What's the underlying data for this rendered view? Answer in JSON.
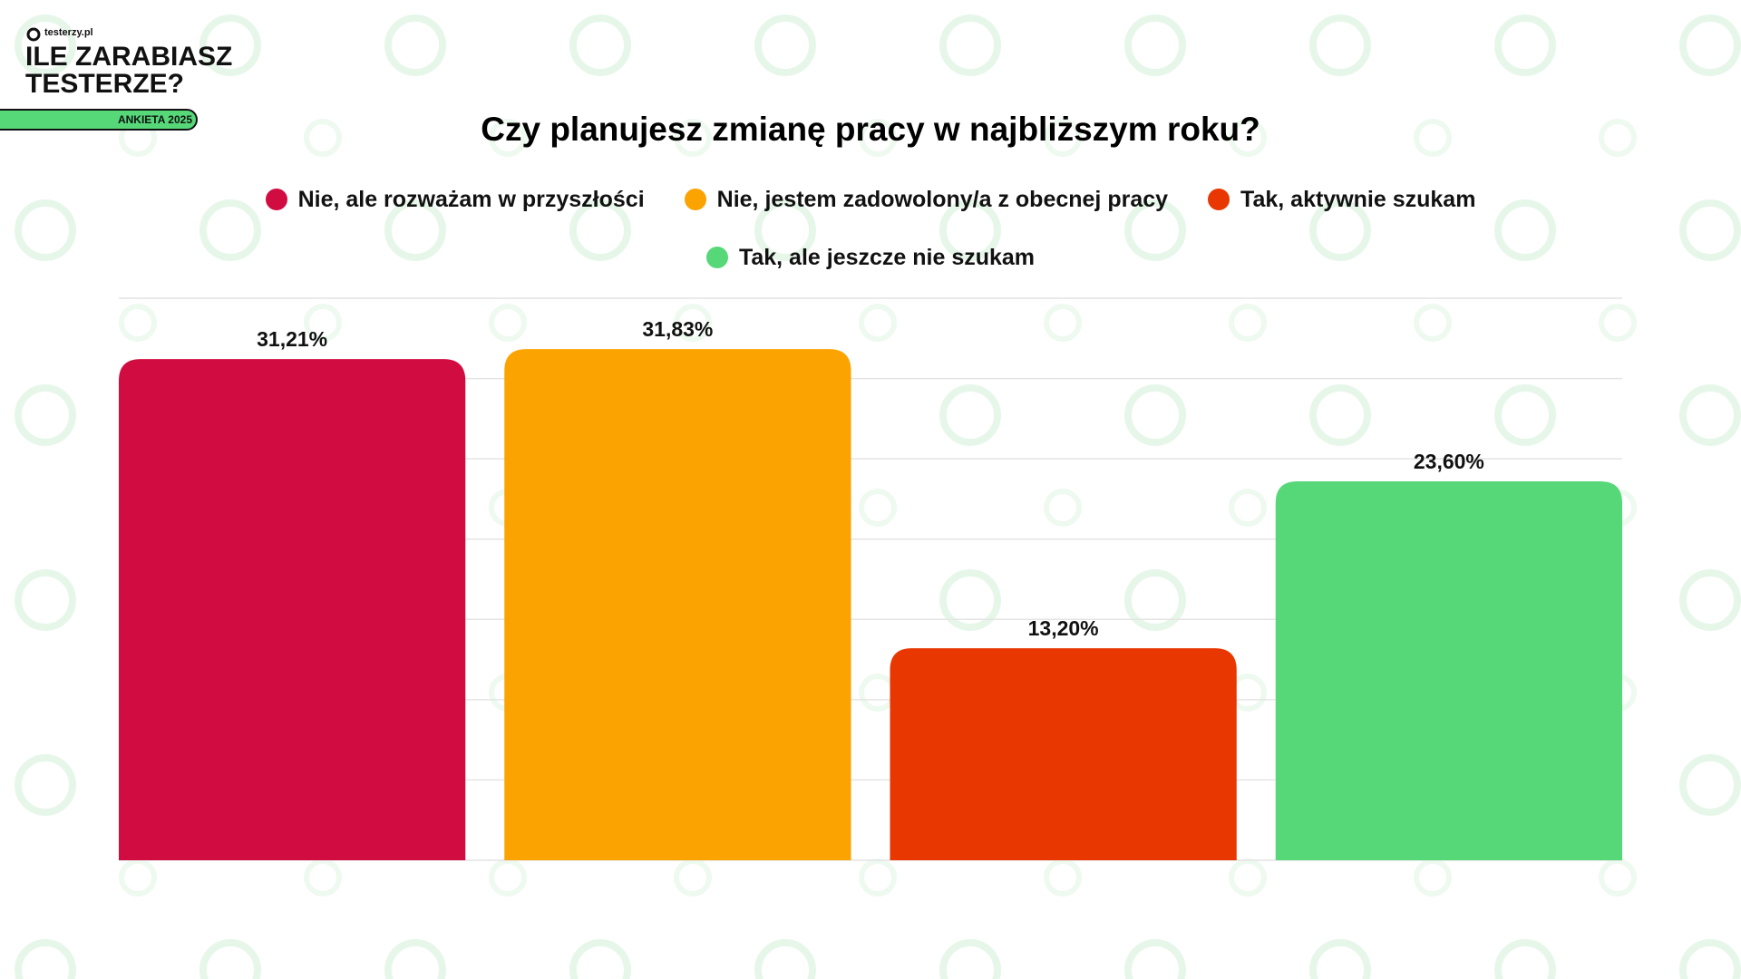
{
  "header": {
    "logo": "testerzy.pl",
    "title_line1": "ILE ZARABIASZ",
    "title_line2": "TESTERZE?",
    "badge": "ANKIETA 2025"
  },
  "chart_data": {
    "type": "bar",
    "title": "Czy planujesz zmianę pracy w najbliższym roku?",
    "series": [
      {
        "name": "Nie, ale rozważam w przyszłości",
        "color": "#d10c41",
        "values": [
          31.21
        ],
        "value_labels": [
          "31,21%"
        ]
      },
      {
        "name": "Nie, jestem zadowolony/a z obecnej pracy",
        "color": "#fba300",
        "values": [
          31.83
        ],
        "value_labels": [
          "31,83%"
        ]
      },
      {
        "name": "Tak, aktywnie szukam",
        "color": "#e83700",
        "values": [
          13.2
        ],
        "value_labels": [
          "13,20%"
        ]
      },
      {
        "name": "Tak, ale jeszcze nie szukam",
        "color": "#56d879",
        "values": [
          23.6
        ],
        "value_labels": [
          "23,60%"
        ]
      }
    ],
    "ylim": [
      0,
      35
    ],
    "yticks": [
      0,
      5,
      10,
      15,
      20,
      25,
      30,
      35
    ],
    "grid": true,
    "legend": "top"
  }
}
